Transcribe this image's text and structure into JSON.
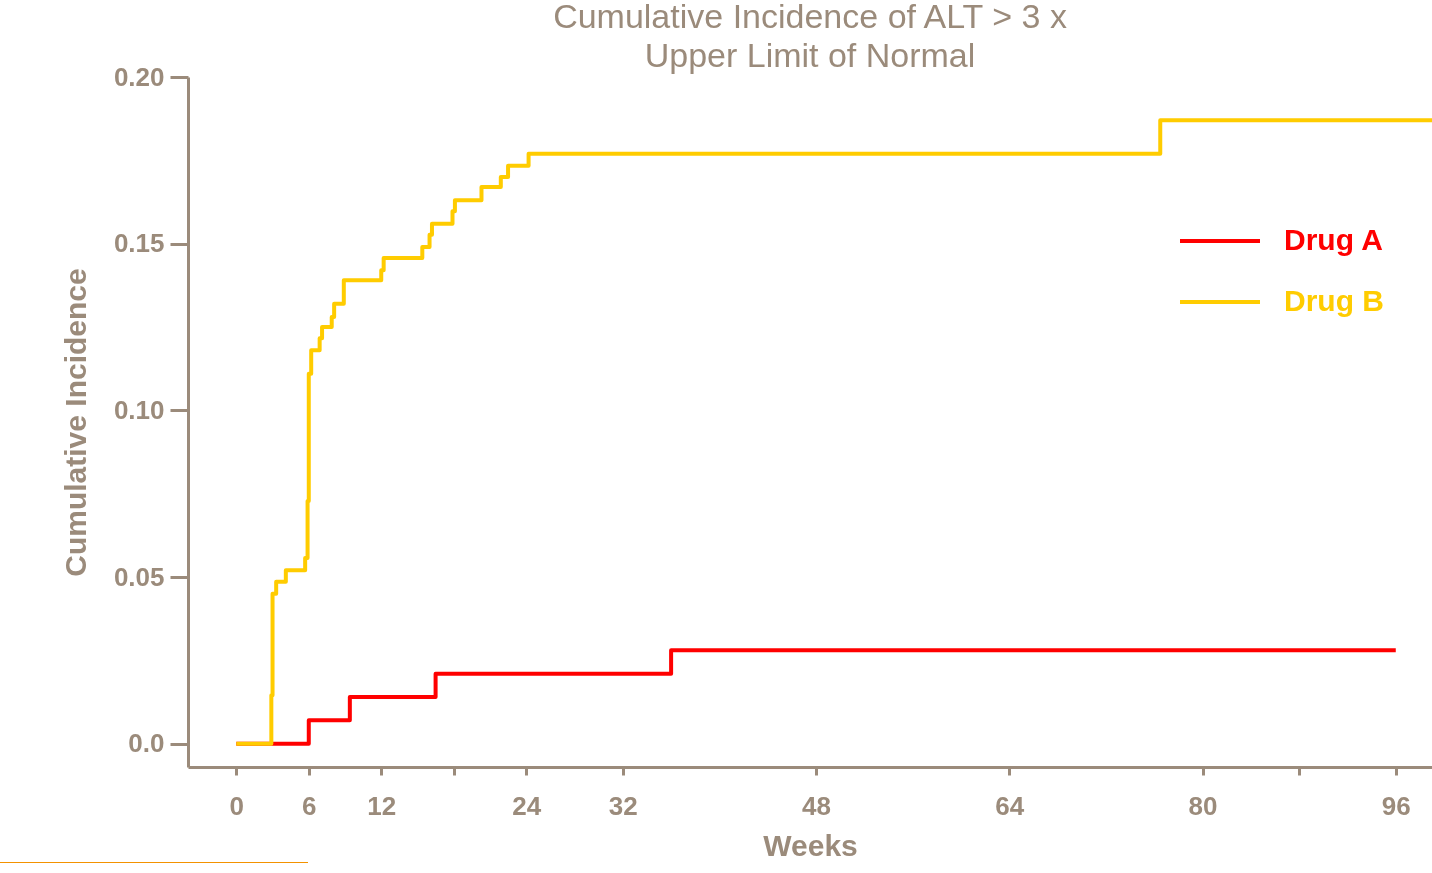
{
  "chart_data": {
    "type": "step",
    "title": "Cumulative Incidence of ALT > 3 x\nUpper Limit of Normal",
    "xlabel": "Weeks",
    "ylabel": "Cumulative Incidence",
    "xlim": [
      -4,
      99
    ],
    "xticks": [
      0,
      6,
      12,
      {
        "value": 18,
        "label": null
      },
      24,
      32,
      48,
      64,
      80,
      {
        "value": 88,
        "label": null
      },
      96
    ],
    "ylim": [
      -0.007,
      0.2
    ],
    "yticks": [
      {
        "value": 0,
        "label": "0.0"
      },
      0.05,
      {
        "value": 0.1,
        "label": "0.10"
      },
      0.15,
      {
        "value": 0.2,
        "label": "0.20"
      }
    ],
    "grid": false,
    "legend": "top right",
    "line_style": "solid",
    "marker": "none",
    "series": [
      {
        "name": "Drug A",
        "color": "#ff0000",
        "x": [
          0,
          6,
          9.4,
          16.5,
          36,
          96
        ],
        "values": [
          0,
          0.007,
          0.014,
          0.021,
          0.028,
          0.028
        ]
      },
      {
        "name": "Drug B",
        "color": "#ffcc00",
        "x": [
          0,
          2.9,
          3.0,
          3.3,
          4.1,
          5.7,
          5.9,
          6.0,
          6.2,
          6.9,
          7.1,
          7.9,
          8.1,
          8.9,
          12.0,
          12.2,
          15.4,
          16.0,
          16.2,
          17.9,
          18.1,
          20.3,
          21.9,
          22.5,
          24.2,
          76.5,
          99
        ],
        "values": [
          0,
          0.0145,
          0.045,
          0.0486,
          0.052,
          0.0557,
          0.0728,
          0.111,
          0.118,
          0.1216,
          0.125,
          0.128,
          0.132,
          0.139,
          0.142,
          0.1457,
          0.149,
          0.1527,
          0.156,
          0.1597,
          0.163,
          0.167,
          0.17,
          0.1734,
          0.177,
          0.187,
          0.187
        ]
      }
    ]
  }
}
